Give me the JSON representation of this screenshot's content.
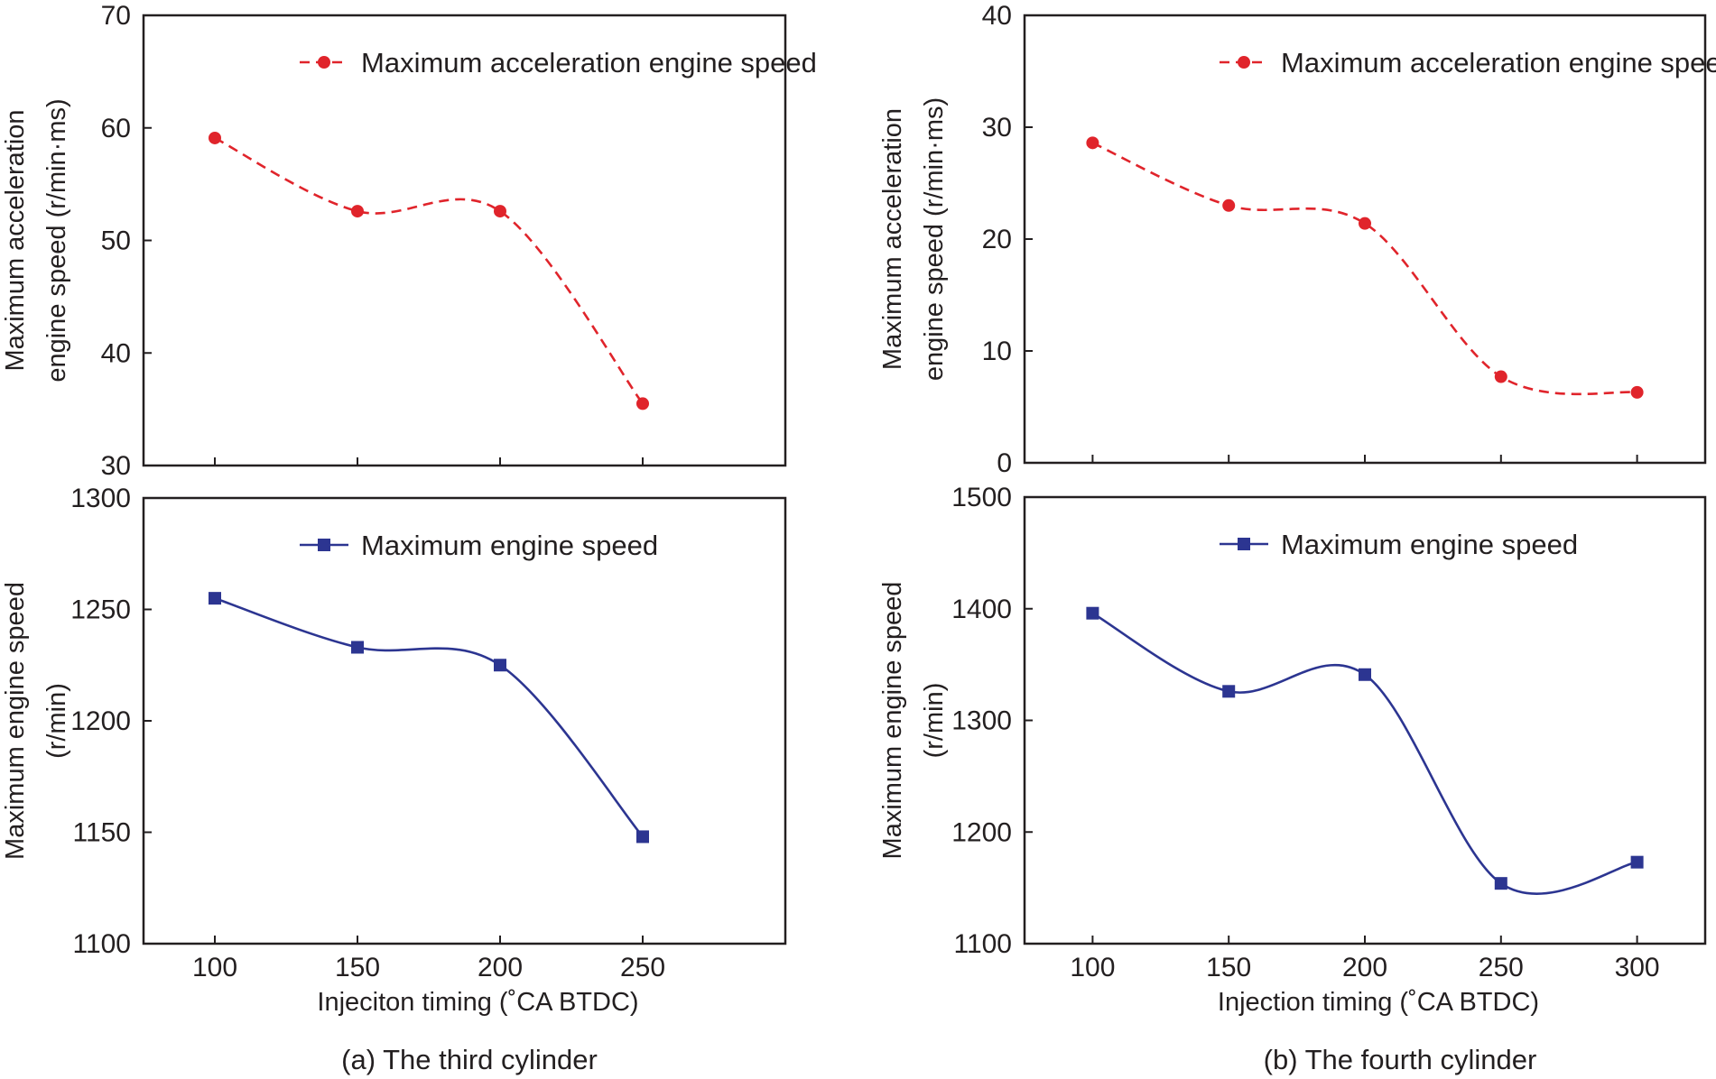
{
  "chart_data": [
    {
      "id": "a_top",
      "type": "line",
      "panel": "(a) The third cylinder",
      "x": [
        100,
        150,
        200,
        250
      ],
      "x_ticks": [
        "100",
        "150",
        "200",
        "250"
      ],
      "xlim": [
        75,
        300
      ],
      "ylim": [
        30,
        70
      ],
      "y_ticks": [
        "30",
        "40",
        "50",
        "60",
        "70"
      ],
      "ylabel_lines": [
        "Maximum acceleration",
        "engine speed (r/min·ms)"
      ],
      "series": [
        {
          "name": "Maximum acceleration engine speed",
          "color": "#e0242b",
          "marker": "circle",
          "dash": true,
          "values": [
            59.1,
            52.6,
            52.6,
            35.5
          ]
        }
      ],
      "legend_position": "top-right"
    },
    {
      "id": "a_bottom",
      "type": "line",
      "panel": "(a) The third cylinder",
      "x": [
        100,
        150,
        200,
        250
      ],
      "x_ticks": [
        "100",
        "150",
        "200",
        "250"
      ],
      "xlim": [
        75,
        300
      ],
      "ylim": [
        1100,
        1300
      ],
      "y_ticks": [
        "1100",
        "1150",
        "1200",
        "1250",
        "1300"
      ],
      "ylabel_lines": [
        "Maximum engine speed",
        "(r/min)"
      ],
      "xlabel": "Injeciton timing (˚CA BTDC)",
      "series": [
        {
          "name": "Maximum engine speed",
          "color": "#2c3591",
          "marker": "square",
          "dash": false,
          "values": [
            1255,
            1233,
            1225,
            1148
          ]
        }
      ],
      "legend_position": "top-right"
    },
    {
      "id": "b_top",
      "type": "line",
      "panel": "(b) The fourth cylinder",
      "x": [
        100,
        150,
        200,
        250,
        300
      ],
      "x_ticks": [
        "100",
        "150",
        "200",
        "250",
        "300"
      ],
      "xlim": [
        75,
        325
      ],
      "ylim": [
        0,
        40
      ],
      "y_ticks": [
        "0",
        "10",
        "20",
        "30",
        "40"
      ],
      "ylabel_lines": [
        "Maximum acceleration",
        "engine speed (r/min·ms)"
      ],
      "series": [
        {
          "name": "Maximum acceleration engine speed",
          "color": "#e0242b",
          "marker": "circle",
          "dash": true,
          "values": [
            28.6,
            23.0,
            21.4,
            7.7,
            6.3
          ]
        }
      ],
      "legend_position": "top-right"
    },
    {
      "id": "b_bottom",
      "type": "line",
      "panel": "(b) The fourth cylinder",
      "x": [
        100,
        150,
        200,
        250,
        300
      ],
      "x_ticks": [
        "100",
        "150",
        "200",
        "250",
        "300"
      ],
      "xlim": [
        75,
        325
      ],
      "ylim": [
        1100,
        1500
      ],
      "y_ticks": [
        "1100",
        "1200",
        "1300",
        "1400",
        "1500"
      ],
      "ylabel_lines": [
        "Maximum engine speed",
        "(r/min)"
      ],
      "xlabel": "Injection timing (˚CA BTDC)",
      "series": [
        {
          "name": "Maximum engine speed",
          "color": "#2c3591",
          "marker": "square",
          "dash": false,
          "values": [
            1396,
            1326,
            1341,
            1154,
            1173
          ]
        }
      ],
      "legend_position": "top-right"
    }
  ],
  "captions": {
    "a": "(a) The third cylinder",
    "b": "(b) The fourth cylinder"
  }
}
